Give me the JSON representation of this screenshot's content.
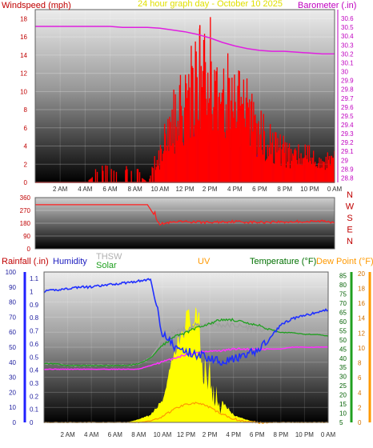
{
  "top_chart": {
    "labels": {
      "windspeed": "Windspeed (mph)",
      "title": "24 hour graph day - October 10 2025",
      "barometer": "Barometer (.in)"
    },
    "colors": {
      "wind_label": "#c00000",
      "title": "#e0e000",
      "baro_label": "#c000c0"
    },
    "wind_ticks": [
      "0",
      "2",
      "4",
      "6",
      "8",
      "10",
      "12",
      "14",
      "16",
      "18"
    ],
    "baro_ticks": [
      "28.8",
      "28.9",
      "29",
      "29.1",
      "29.2",
      "29.3",
      "29.4",
      "29.5",
      "29.6",
      "29.7",
      "29.8",
      "29.9",
      "30",
      "30.1",
      "30.2",
      "30.3",
      "30.4",
      "30.5",
      "30.6"
    ]
  },
  "mid_chart": {
    "dir_ticks": [
      "0",
      "90",
      "180",
      "270",
      "360"
    ],
    "compass": [
      "N",
      "W",
      "S",
      "E",
      "N"
    ]
  },
  "bottom_chart": {
    "labels": {
      "rainfall": "Rainfall (.in)",
      "humidity": "Humidity",
      "thsw": "THSW",
      "solar": "Solar",
      "uv": "UV",
      "temperature": "Temperature (°F)",
      "dewpoint": "Dew Point (°F)"
    },
    "hum_ticks": [
      "0",
      "10",
      "20",
      "30",
      "40",
      "50",
      "60",
      "70",
      "80",
      "90",
      "100"
    ],
    "rain_ticks": [
      "0",
      "0.1",
      "0.2",
      "0.3",
      "0.4",
      "0.5",
      "0.6",
      "0.7",
      "0.8",
      "0.9",
      "1",
      "1.1"
    ],
    "temp_ticks": [
      "5",
      "10",
      "15",
      "20",
      "25",
      "30",
      "35",
      "40",
      "45",
      "50",
      "55",
      "60",
      "65",
      "70",
      "75",
      "80",
      "85"
    ],
    "uv_ticks": [
      "0",
      "2",
      "4",
      "6",
      "8",
      "10",
      "12",
      "14",
      "16",
      "18",
      "20"
    ]
  },
  "x_ticks": [
    "2 AM",
    "4 AM",
    "6 AM",
    "8 AM",
    "10 AM",
    "12 PM",
    "2 PM",
    "4 PM",
    "6 PM",
    "8 PM",
    "10 PM",
    "0 AM"
  ],
  "chart_data": [
    {
      "type": "line",
      "title": "24 hour graph day - October 10 2025",
      "ylabel": "Windspeed (mph)",
      "y2label": "Barometer (.in)",
      "ylim": [
        0,
        19
      ],
      "y2lim": [
        28.75,
        30.7
      ],
      "x": [
        0,
        1,
        2,
        3,
        4,
        5,
        6,
        7,
        8,
        9,
        10,
        11,
        12,
        13,
        14,
        15,
        16,
        17,
        18,
        19,
        20,
        21,
        22,
        23,
        24
      ],
      "series": [
        {
          "name": "Windspeed (mph)",
          "color": "#ff0000",
          "values": [
            0,
            0,
            0,
            0,
            0,
            1,
            1,
            1,
            1,
            0,
            3,
            6,
            8,
            10,
            11,
            9,
            8,
            7,
            5,
            4,
            3,
            3,
            3,
            2,
            3
          ]
        },
        {
          "name": "Barometer (.in)",
          "color": "#e020e0",
          "axis": "right",
          "values": [
            30.51,
            30.51,
            30.51,
            30.51,
            30.51,
            30.51,
            30.51,
            30.5,
            30.5,
            30.5,
            30.49,
            30.47,
            30.45,
            30.42,
            30.38,
            30.33,
            30.29,
            30.26,
            30.24,
            30.23,
            30.23,
            30.22,
            30.21,
            30.2,
            30.2
          ]
        }
      ]
    },
    {
      "type": "line",
      "ylabel": "Wind direction",
      "ylim": [
        0,
        360
      ],
      "x": [
        0,
        1,
        2,
        3,
        4,
        5,
        6,
        7,
        8,
        9,
        10,
        11,
        12,
        13,
        14,
        15,
        16,
        17,
        18,
        19,
        20,
        21,
        22,
        23,
        24
      ],
      "series": [
        {
          "name": "Wind direction",
          "color": "#ff2020",
          "values": [
            310,
            310,
            310,
            310,
            310,
            310,
            310,
            310,
            310,
            310,
            175,
            185,
            190,
            188,
            185,
            190,
            192,
            188,
            186,
            190,
            188,
            192,
            190,
            195,
            188
          ]
        }
      ]
    },
    {
      "type": "line",
      "ylabel": "Humidity",
      "ylim": [
        0,
        100
      ],
      "x": [
        0,
        1,
        2,
        3,
        4,
        5,
        6,
        7,
        8,
        9,
        10,
        11,
        12,
        13,
        14,
        15,
        16,
        17,
        18,
        19,
        20,
        21,
        22,
        23,
        24
      ],
      "series": [
        {
          "name": "Humidity",
          "color": "#2030ff",
          "axis": "humidity",
          "values": [
            87,
            88,
            89,
            90,
            90,
            91,
            92,
            93,
            94,
            95,
            60,
            50,
            47,
            45,
            43,
            41,
            42,
            44,
            48,
            55,
            65,
            69,
            71,
            73,
            75
          ]
        },
        {
          "name": "Temperature (°F)",
          "color": "#20a020",
          "axis": "temperature",
          "values": [
            37,
            37,
            36,
            36,
            36,
            36,
            36,
            36,
            37,
            40,
            47,
            52,
            54,
            57,
            59,
            61,
            61,
            59,
            58,
            56,
            54,
            54,
            53,
            53,
            52
          ]
        },
        {
          "name": "THSW",
          "color": "#a0a0a0",
          "axis": "temperature",
          "values": [
            37,
            37,
            36,
            36,
            36,
            36,
            36,
            36,
            37,
            40,
            50,
            54,
            56,
            58,
            59,
            58,
            58,
            57,
            56,
            55,
            54,
            54,
            53,
            53,
            52
          ]
        },
        {
          "name": "Dew Point (°F)",
          "color": "#ff30ff",
          "axis": "temperature",
          "values": [
            34,
            34,
            34,
            34,
            34,
            34,
            34,
            34,
            34,
            36,
            38,
            40,
            42,
            43,
            44,
            44,
            45,
            45,
            45,
            45,
            45,
            46,
            46,
            46,
            46
          ]
        },
        {
          "name": "Solar",
          "color": "#ffff00",
          "axis": "solar",
          "values": [
            0,
            0,
            0,
            0,
            0,
            0,
            0,
            0,
            2,
            5,
            15,
            45,
            70,
            70,
            40,
            15,
            5,
            2,
            0,
            0,
            0,
            0,
            0,
            0,
            0
          ]
        },
        {
          "name": "UV",
          "color": "#ff9900",
          "axis": "uv",
          "values": [
            0,
            0,
            0,
            0,
            0,
            0,
            0,
            0,
            0,
            0.2,
            0.8,
            1.8,
            2.5,
            2.6,
            2.0,
            1.1,
            0.5,
            0.1,
            0,
            0,
            0,
            0,
            0,
            0,
            0
          ]
        },
        {
          "name": "Rainfall (.in)",
          "color": "#2020ff",
          "axis": "rainfall",
          "values": [
            0,
            0,
            0,
            0,
            0,
            0,
            0,
            0,
            0,
            0,
            0,
            0,
            0,
            0,
            0,
            0,
            0,
            0,
            0,
            0,
            0,
            0,
            0,
            0,
            0
          ]
        }
      ]
    }
  ]
}
